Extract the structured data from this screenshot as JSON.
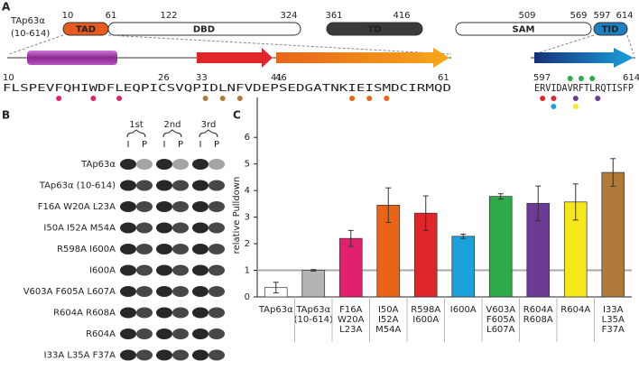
{
  "panel_a": {
    "label": "A",
    "protein": "TAp63α",
    "range": "(10-614)",
    "domain_names": [
      "TAD",
      "DBD",
      "TD",
      "SAM",
      "TID"
    ],
    "domain_positions": [
      10,
      61,
      122,
      324,
      361,
      416,
      509,
      569,
      597,
      614
    ],
    "left_positions": [
      10,
      26,
      33,
      41,
      46,
      61
    ],
    "left_sequence": "FLSPEVFQHIWDFLEQPICSVQPIDLNFVDEPSEDGATNKIEISMDCIRMQD",
    "right_positions": [
      597,
      614
    ],
    "right_sequence": "ERVIDAVRFTLRQTISFP"
  },
  "panel_b": {
    "label": "B",
    "replicates": [
      "1st",
      "2nd",
      "3rd"
    ],
    "lanes": [
      "I",
      "P",
      "I",
      "P",
      "I",
      "P"
    ],
    "rows": [
      "TAp63α",
      "TAp63α (10-614)",
      "F16A W20A L23A",
      "I50A I52A M54A",
      "R598A I600A",
      "I600A",
      "V603A F605A L607A",
      "R604A R608A",
      "R604A",
      "I33A L35A F37A"
    ]
  },
  "chart_data": {
    "type": "bar",
    "panel_label": "C",
    "y_label": "relative Pulldown",
    "categories": [
      [
        "TAp63α"
      ],
      [
        "TAp63α",
        "(10-614)"
      ],
      [
        "F16A",
        "W20A",
        "L23A"
      ],
      [
        "I50A",
        "I52A",
        "M54A"
      ],
      [
        "R598A",
        "I600A"
      ],
      [
        "I600A"
      ],
      [
        "V603A",
        "F605A",
        "L607A"
      ],
      [
        "R604A",
        "R608A"
      ],
      [
        "R604A"
      ],
      [
        "I33A",
        "L35A",
        "F37A"
      ]
    ],
    "values": [
      0.35,
      1.0,
      2.2,
      3.45,
      3.15,
      2.28,
      3.78,
      3.52,
      3.57,
      4.68
    ],
    "errors": [
      0.2,
      0.03,
      0.3,
      0.65,
      0.65,
      0.08,
      0.1,
      0.65,
      0.68,
      0.52
    ],
    "colors": [
      "#ffffff",
      "#b4b4b4",
      "#e3206e",
      "#ea6418",
      "#e0262a",
      "#1ba1dc",
      "#2eaa4a",
      "#6b3a94",
      "#f6e71a",
      "#b07a3a"
    ],
    "reference_line": 1,
    "ylim": [
      0,
      7.5
    ],
    "yticks": [
      0,
      1,
      2,
      3,
      4,
      5,
      6
    ]
  }
}
